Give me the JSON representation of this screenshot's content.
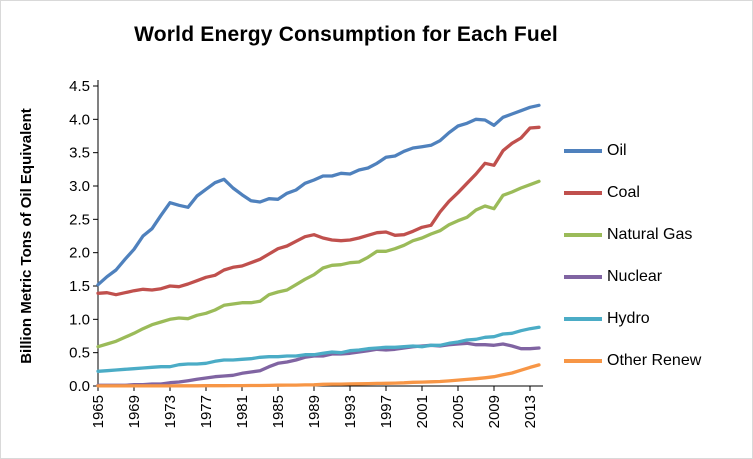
{
  "chart_data": {
    "type": "line",
    "title": "World Energy Consumption for Each Fuel",
    "xlabel": "",
    "ylabel": "Billion Metric Tons of Oil Equivalent",
    "xlim": [
      1965,
      2014
    ],
    "ylim": [
      0,
      4.5
    ],
    "grid": false,
    "legend_position": "right",
    "y_ticks": [
      0,
      0.5,
      1,
      1.5,
      2,
      2.5,
      3,
      3.5,
      4,
      4.5
    ],
    "x_tick_labels": [
      "1965",
      "1969",
      "1973",
      "1977",
      "1981",
      "1985",
      "1989",
      "1993",
      "1997",
      "2001",
      "2005",
      "2009",
      "2013"
    ],
    "x": [
      1965,
      1966,
      1967,
      1968,
      1969,
      1970,
      1971,
      1972,
      1973,
      1974,
      1975,
      1976,
      1977,
      1978,
      1979,
      1980,
      1981,
      1982,
      1983,
      1984,
      1985,
      1986,
      1987,
      1988,
      1989,
      1990,
      1991,
      1992,
      1993,
      1994,
      1995,
      1996,
      1997,
      1998,
      1999,
      2000,
      2001,
      2002,
      2003,
      2004,
      2005,
      2006,
      2007,
      2008,
      2009,
      2010,
      2011,
      2012,
      2013,
      2014
    ],
    "series": [
      {
        "name": "Oil",
        "color": "#4F81BD",
        "values": [
          1.52,
          1.64,
          1.74,
          1.9,
          2.05,
          2.25,
          2.36,
          2.56,
          2.75,
          2.71,
          2.68,
          2.85,
          2.95,
          3.05,
          3.1,
          2.97,
          2.87,
          2.78,
          2.76,
          2.81,
          2.8,
          2.89,
          2.94,
          3.04,
          3.09,
          3.15,
          3.15,
          3.19,
          3.18,
          3.24,
          3.27,
          3.34,
          3.43,
          3.45,
          3.52,
          3.57,
          3.59,
          3.61,
          3.68,
          3.8,
          3.9,
          3.94,
          4.0,
          3.99,
          3.91,
          4.03,
          4.08,
          4.13,
          4.18,
          4.21
        ]
      },
      {
        "name": "Coal",
        "color": "#C0504D",
        "values": [
          1.39,
          1.4,
          1.37,
          1.4,
          1.43,
          1.45,
          1.44,
          1.46,
          1.5,
          1.49,
          1.53,
          1.58,
          1.63,
          1.66,
          1.74,
          1.78,
          1.8,
          1.85,
          1.9,
          1.98,
          2.06,
          2.1,
          2.17,
          2.24,
          2.27,
          2.22,
          2.19,
          2.18,
          2.19,
          2.22,
          2.26,
          2.3,
          2.31,
          2.26,
          2.27,
          2.32,
          2.38,
          2.41,
          2.61,
          2.77,
          2.9,
          3.04,
          3.18,
          3.34,
          3.31,
          3.53,
          3.64,
          3.72,
          3.87,
          3.88
        ]
      },
      {
        "name": "Natural Gas",
        "color": "#9BBB59",
        "values": [
          0.59,
          0.63,
          0.67,
          0.73,
          0.79,
          0.86,
          0.92,
          0.96,
          1.0,
          1.02,
          1.01,
          1.06,
          1.09,
          1.14,
          1.21,
          1.23,
          1.25,
          1.25,
          1.27,
          1.37,
          1.41,
          1.44,
          1.52,
          1.6,
          1.67,
          1.77,
          1.81,
          1.82,
          1.85,
          1.86,
          1.93,
          2.02,
          2.02,
          2.06,
          2.11,
          2.18,
          2.22,
          2.28,
          2.33,
          2.42,
          2.48,
          2.53,
          2.64,
          2.7,
          2.66,
          2.86,
          2.91,
          2.97,
          3.02,
          3.07
        ]
      },
      {
        "name": "Nuclear",
        "color": "#8064A2",
        "values": [
          0.01,
          0.01,
          0.01,
          0.01,
          0.02,
          0.02,
          0.03,
          0.03,
          0.05,
          0.06,
          0.08,
          0.1,
          0.12,
          0.14,
          0.15,
          0.16,
          0.19,
          0.21,
          0.23,
          0.29,
          0.34,
          0.36,
          0.39,
          0.43,
          0.45,
          0.45,
          0.48,
          0.48,
          0.49,
          0.51,
          0.53,
          0.55,
          0.54,
          0.55,
          0.57,
          0.59,
          0.6,
          0.61,
          0.6,
          0.62,
          0.63,
          0.64,
          0.62,
          0.62,
          0.61,
          0.63,
          0.6,
          0.56,
          0.56,
          0.57
        ]
      },
      {
        "name": "Hydro",
        "color": "#4BACC6",
        "values": [
          0.22,
          0.23,
          0.24,
          0.25,
          0.26,
          0.27,
          0.28,
          0.29,
          0.29,
          0.32,
          0.33,
          0.33,
          0.34,
          0.37,
          0.39,
          0.39,
          0.4,
          0.41,
          0.43,
          0.44,
          0.44,
          0.45,
          0.45,
          0.47,
          0.47,
          0.49,
          0.51,
          0.5,
          0.53,
          0.54,
          0.56,
          0.57,
          0.58,
          0.58,
          0.59,
          0.6,
          0.59,
          0.61,
          0.61,
          0.64,
          0.66,
          0.69,
          0.7,
          0.73,
          0.74,
          0.78,
          0.79,
          0.83,
          0.86,
          0.88
        ]
      },
      {
        "name": "Other Renew",
        "color": "#F79646",
        "values": [
          0.001,
          0.001,
          0.001,
          0.001,
          0.002,
          0.002,
          0.002,
          0.002,
          0.002,
          0.003,
          0.003,
          0.003,
          0.004,
          0.004,
          0.005,
          0.006,
          0.006,
          0.007,
          0.008,
          0.009,
          0.012,
          0.013,
          0.014,
          0.016,
          0.018,
          0.026,
          0.028,
          0.029,
          0.031,
          0.033,
          0.036,
          0.039,
          0.041,
          0.044,
          0.048,
          0.055,
          0.058,
          0.063,
          0.068,
          0.077,
          0.088,
          0.099,
          0.11,
          0.123,
          0.14,
          0.168,
          0.195,
          0.237,
          0.279,
          0.317
        ]
      }
    ]
  }
}
